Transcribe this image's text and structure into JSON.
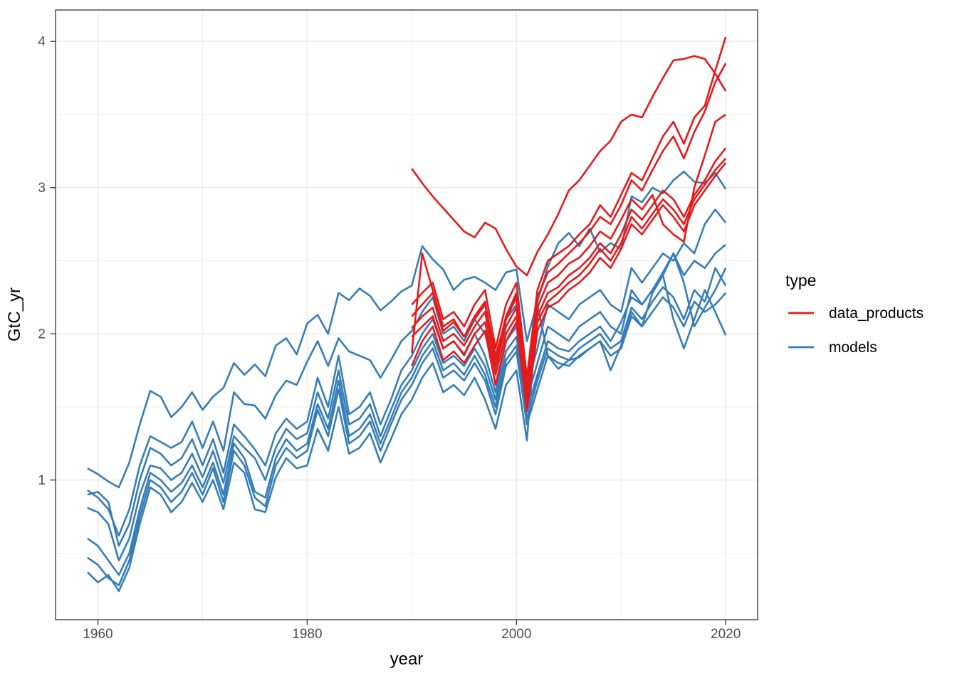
{
  "figure": {
    "background": "#ffffff"
  },
  "axes": {
    "x_title": "year",
    "y_title": "GtC_yr",
    "x_tick_labels": [
      "1960",
      "1980",
      "2000",
      "2020"
    ],
    "y_tick_labels": [
      "1",
      "2",
      "3",
      "4"
    ]
  },
  "legend": {
    "title": "type",
    "items": [
      {
        "label": "data_products",
        "color": "#E41A1C"
      },
      {
        "label": "models",
        "color": "#377EB8"
      }
    ]
  },
  "style_colors": {
    "data_products": "#E41A1C",
    "models": "#377EB8",
    "grid": "#EBEBEB",
    "panel_border": "#333333",
    "tick_text": "#4D4D4D"
  },
  "chart_data": {
    "type": "line",
    "title": "",
    "xlabel": "year",
    "ylabel": "GtC_yr",
    "xlim": [
      1955.95,
      2023.05
    ],
    "ylim": [
      0.045,
      4.215
    ],
    "x_major_ticks": [
      1960,
      1980,
      2000,
      2020
    ],
    "x_minor_gridlines": [
      1970,
      1990,
      2010
    ],
    "y_major_ticks": [
      1,
      2,
      3,
      4
    ],
    "y_minor_gridlines": [
      0.5,
      1.5,
      2.5,
      3.5
    ],
    "grid": true,
    "legend_position": "right",
    "series": [
      {
        "name": "models_1",
        "type": "models",
        "color": "#377EB8",
        "start_year": 1959,
        "values": [
          1.08,
          1.04,
          0.99,
          0.95,
          1.12,
          1.38,
          1.61,
          1.57,
          1.43,
          1.5,
          1.6,
          1.48,
          1.57,
          1.63,
          1.8,
          1.72,
          1.79,
          1.71,
          1.92,
          1.97,
          1.86,
          2.07,
          2.13,
          2.0,
          2.28,
          2.23,
          2.31,
          2.26,
          2.16,
          2.22,
          2.29,
          2.33,
          2.6,
          2.51,
          2.44,
          2.3,
          2.37,
          2.39,
          2.35,
          2.3,
          2.42,
          2.44,
          1.95,
          2.22,
          2.46,
          2.62,
          2.69,
          2.6,
          2.72,
          2.56,
          2.62,
          2.58,
          2.94,
          2.9,
          3.0,
          2.96,
          3.05,
          3.11,
          3.04,
          3.03,
          3.1,
          2.99
        ]
      },
      {
        "name": "models_2",
        "type": "models",
        "color": "#377EB8",
        "start_year": 1959,
        "values": [
          0.93,
          0.88,
          0.8,
          0.62,
          0.8,
          1.1,
          1.3,
          1.26,
          1.22,
          1.26,
          1.4,
          1.22,
          1.4,
          1.2,
          1.6,
          1.52,
          1.51,
          1.42,
          1.58,
          1.68,
          1.65,
          1.81,
          1.95,
          1.78,
          1.97,
          1.88,
          1.85,
          1.82,
          1.7,
          1.82,
          1.95,
          2.02,
          2.15,
          2.25,
          2.0,
          2.05,
          1.95,
          2.1,
          2.0,
          1.75,
          2.1,
          2.2,
          1.65,
          1.9,
          2.2,
          2.15,
          2.1,
          2.2,
          2.25,
          2.3,
          2.2,
          2.15,
          2.45,
          2.35,
          2.45,
          2.55,
          2.5,
          2.62,
          2.55,
          2.75,
          2.85,
          2.76
        ]
      },
      {
        "name": "models_3",
        "type": "models",
        "color": "#377EB8",
        "start_year": 1959,
        "values": [
          0.9,
          0.92,
          0.85,
          0.55,
          0.7,
          1.0,
          1.22,
          1.18,
          1.1,
          1.15,
          1.28,
          1.1,
          1.28,
          1.05,
          1.38,
          1.3,
          1.21,
          1.1,
          1.32,
          1.42,
          1.35,
          1.4,
          1.7,
          1.5,
          1.85,
          1.45,
          1.5,
          1.6,
          1.38,
          1.55,
          1.75,
          1.85,
          2.0,
          2.1,
          1.9,
          1.95,
          1.85,
          2.0,
          1.85,
          1.6,
          1.95,
          2.05,
          1.55,
          1.8,
          2.05,
          2.0,
          1.95,
          2.05,
          2.1,
          2.15,
          2.05,
          2.0,
          2.3,
          2.2,
          2.3,
          2.4,
          2.55,
          2.4,
          2.5,
          2.45,
          2.55,
          2.61
        ]
      },
      {
        "name": "models_4",
        "type": "models",
        "color": "#377EB8",
        "start_year": 1959,
        "values": [
          0.81,
          0.78,
          0.7,
          0.45,
          0.6,
          0.9,
          1.1,
          1.08,
          1.0,
          1.05,
          1.18,
          1.02,
          1.2,
          0.98,
          1.3,
          1.22,
          1.15,
          1.0,
          1.22,
          1.35,
          1.28,
          1.32,
          1.6,
          1.42,
          1.75,
          1.38,
          1.42,
          1.52,
          1.3,
          1.48,
          1.65,
          1.75,
          1.9,
          2.0,
          1.8,
          1.85,
          1.78,
          1.9,
          1.78,
          1.55,
          1.88,
          1.98,
          1.48,
          1.72,
          1.95,
          1.9,
          1.88,
          1.95,
          2.0,
          2.05,
          1.95,
          2.08,
          2.25,
          2.2,
          2.3,
          2.42,
          2.55,
          2.35,
          2.05,
          2.18,
          2.3,
          2.45
        ]
      },
      {
        "name": "models_5",
        "type": "models",
        "color": "#377EB8",
        "start_year": 1959,
        "values": [
          0.6,
          0.55,
          0.45,
          0.35,
          0.5,
          0.8,
          1.05,
          1.0,
          0.92,
          0.98,
          1.1,
          0.95,
          1.12,
          0.9,
          1.25,
          1.15,
          0.92,
          0.88,
          1.15,
          1.28,
          1.2,
          1.25,
          1.52,
          1.35,
          1.68,
          1.3,
          1.35,
          1.45,
          1.25,
          1.42,
          1.6,
          1.7,
          1.85,
          1.95,
          1.75,
          1.8,
          1.72,
          1.85,
          1.72,
          1.5,
          1.82,
          1.92,
          1.42,
          1.68,
          1.9,
          1.85,
          1.82,
          1.9,
          1.95,
          2.0,
          1.9,
          1.95,
          2.18,
          2.1,
          2.22,
          2.32,
          2.25,
          2.1,
          2.3,
          2.22,
          2.45,
          2.33
        ]
      },
      {
        "name": "models_6",
        "type": "models",
        "color": "#377EB8",
        "start_year": 1959,
        "values": [
          0.47,
          0.42,
          0.33,
          0.28,
          0.45,
          0.75,
          1.0,
          0.95,
          0.85,
          0.92,
          1.05,
          0.9,
          1.08,
          0.85,
          1.2,
          1.1,
          0.88,
          0.82,
          1.1,
          1.22,
          1.15,
          1.2,
          1.48,
          1.3,
          1.62,
          1.25,
          1.3,
          1.4,
          1.2,
          1.38,
          1.55,
          1.65,
          1.8,
          1.9,
          1.7,
          1.75,
          1.68,
          1.8,
          1.68,
          1.45,
          1.78,
          1.88,
          1.38,
          1.62,
          1.85,
          1.8,
          1.78,
          1.85,
          1.9,
          1.95,
          1.85,
          1.9,
          2.12,
          2.05,
          2.15,
          2.25,
          2.18,
          2.05,
          2.22,
          2.15,
          2.2,
          2.28
        ]
      },
      {
        "name": "models_7",
        "type": "models",
        "color": "#377EB8",
        "start_year": 1959,
        "values": [
          0.37,
          0.3,
          0.35,
          0.24,
          0.4,
          0.7,
          0.95,
          0.9,
          0.78,
          0.85,
          0.98,
          0.85,
          1.0,
          0.8,
          1.12,
          1.05,
          0.8,
          0.78,
          1.02,
          1.15,
          1.08,
          1.1,
          1.35,
          1.2,
          1.5,
          1.18,
          1.22,
          1.32,
          1.12,
          1.28,
          1.45,
          1.55,
          1.7,
          1.8,
          1.6,
          1.65,
          1.58,
          1.7,
          1.55,
          1.35,
          1.65,
          1.75,
          1.27,
          2.2,
          1.85,
          1.76,
          1.82,
          1.84,
          1.9,
          1.95,
          1.75,
          1.92,
          2.15,
          2.05,
          2.28,
          2.4,
          2.1,
          1.9,
          2.1,
          2.3,
          2.15,
          1.99
        ]
      },
      {
        "name": "data_products_1",
        "type": "data_products",
        "color": "#E41A1C",
        "start_year": 1990,
        "values": [
          3.13,
          3.03,
          2.94,
          2.86,
          2.78,
          2.7,
          2.66,
          2.76,
          2.72,
          2.58,
          2.46,
          2.4,
          2.56,
          2.68,
          2.82,
          2.98,
          3.05,
          3.15,
          3.25,
          3.32,
          3.45,
          3.5,
          3.48,
          3.62,
          3.75,
          3.87,
          3.88,
          3.9,
          3.88,
          3.78,
          3.66
        ]
      },
      {
        "name": "data_products_2",
        "type": "data_products",
        "color": "#E41A1C",
        "start_year": 1990,
        "values": [
          2.2,
          2.28,
          2.35,
          2.1,
          2.15,
          2.05,
          2.2,
          2.3,
          1.9,
          2.2,
          2.35,
          1.7,
          2.3,
          2.5,
          2.55,
          2.6,
          2.68,
          2.75,
          2.88,
          2.8,
          2.95,
          3.1,
          3.05,
          3.2,
          3.35,
          3.45,
          3.3,
          3.48,
          3.56,
          3.8,
          4.03
        ]
      },
      {
        "name": "data_products_3",
        "type": "data_products",
        "color": "#E41A1C",
        "start_year": 1990,
        "values": [
          1.87,
          2.55,
          2.3,
          2.05,
          2.1,
          1.98,
          2.12,
          2.22,
          1.82,
          2.12,
          2.28,
          1.62,
          2.25,
          2.42,
          2.48,
          2.55,
          2.62,
          2.7,
          2.8,
          2.75,
          2.88,
          3.05,
          2.98,
          3.12,
          3.25,
          3.35,
          3.2,
          3.38,
          3.52,
          3.72,
          3.85
        ]
      },
      {
        "name": "data_products_4",
        "type": "data_products",
        "color": "#E41A1C",
        "start_year": 1990,
        "values": [
          2.12,
          2.2,
          2.28,
          2.02,
          2.08,
          1.98,
          2.1,
          2.2,
          1.85,
          2.1,
          2.25,
          1.6,
          2.18,
          2.35,
          2.4,
          2.48,
          2.52,
          2.6,
          2.7,
          2.65,
          2.78,
          2.92,
          2.85,
          2.95,
          2.75,
          2.68,
          2.63,
          3.0,
          3.22,
          3.45,
          3.5
        ]
      },
      {
        "name": "data_products_5",
        "type": "data_products",
        "color": "#E41A1C",
        "start_year": 1990,
        "values": [
          2.04,
          2.12,
          2.18,
          1.95,
          2.0,
          1.92,
          2.05,
          2.15,
          1.78,
          2.05,
          2.18,
          1.55,
          2.12,
          2.28,
          2.32,
          2.4,
          2.45,
          2.52,
          2.62,
          2.55,
          2.68,
          2.85,
          2.78,
          2.88,
          2.98,
          2.92,
          2.8,
          2.95,
          3.05,
          3.18,
          3.27
        ]
      },
      {
        "name": "data_products_6",
        "type": "data_products",
        "color": "#E41A1C",
        "start_year": 1990,
        "values": [
          1.98,
          2.05,
          2.12,
          1.9,
          1.95,
          1.86,
          2.0,
          2.08,
          1.72,
          2.0,
          2.12,
          1.5,
          2.08,
          2.22,
          2.28,
          2.35,
          2.4,
          2.48,
          2.58,
          2.5,
          2.62,
          2.8,
          2.72,
          2.82,
          2.92,
          2.85,
          2.75,
          2.92,
          3.02,
          3.12,
          3.2
        ]
      },
      {
        "name": "data_products_7",
        "type": "data_products",
        "color": "#E41A1C",
        "start_year": 1990,
        "values": [
          1.78,
          1.95,
          2.05,
          1.82,
          1.88,
          1.8,
          1.92,
          2.02,
          1.65,
          1.95,
          2.08,
          1.47,
          2.02,
          2.18,
          2.22,
          2.3,
          2.35,
          2.42,
          2.52,
          2.45,
          2.58,
          2.75,
          2.68,
          2.78,
          2.88,
          2.8,
          2.7,
          2.88,
          2.98,
          3.08,
          3.17
        ]
      }
    ]
  }
}
